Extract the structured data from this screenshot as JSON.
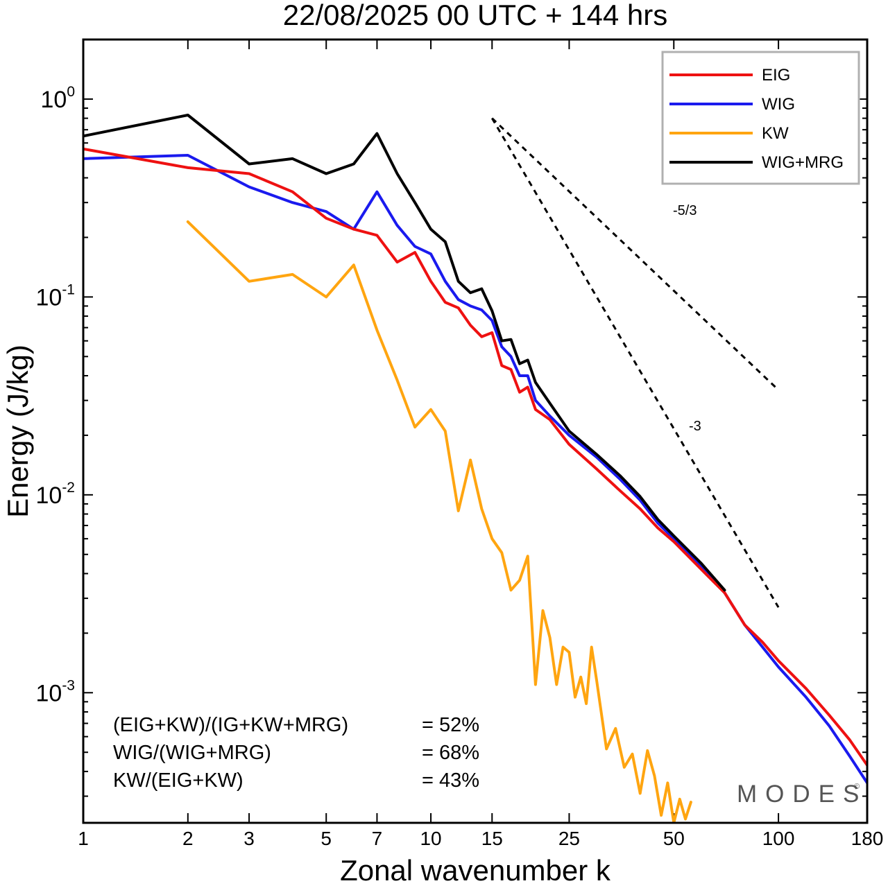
{
  "chart_data": {
    "type": "line",
    "title": "22/08/2025  00 UTC  + 144 hrs",
    "xlabel": "Zonal wavenumber k",
    "ylabel": "Energy (J/kg)",
    "xscale": "log",
    "yscale": "log",
    "xlim": [
      1,
      180
    ],
    "ylim": [
      0.00022,
      2.0
    ],
    "x_ticks": [
      1,
      2,
      3,
      5,
      7,
      10,
      15,
      25,
      50,
      100,
      180
    ],
    "x_tick_labels": [
      "1",
      "2",
      "3",
      "5",
      "7",
      "10",
      "15",
      "25",
      "50",
      "100",
      "180"
    ],
    "y_tick_labels": [
      {
        "value": 1,
        "base": "10",
        "exp": "0"
      },
      {
        "value": 0.1,
        "base": "10",
        "exp": "-1"
      },
      {
        "value": 0.01,
        "base": "10",
        "exp": "-2"
      },
      {
        "value": 0.001,
        "base": "10",
        "exp": "-3"
      }
    ],
    "legend_position": "top-right",
    "series": [
      {
        "name": "EIG",
        "color": "#ee1111",
        "x": [
          1,
          2,
          3,
          4,
          5,
          6,
          7,
          8,
          9,
          10,
          11,
          12,
          13,
          14,
          15,
          16,
          17,
          18,
          19,
          20,
          22,
          25,
          30,
          35,
          40,
          45,
          50,
          60,
          70,
          80,
          90,
          100,
          120,
          140,
          160,
          180
        ],
        "values": [
          0.56,
          0.45,
          0.42,
          0.34,
          0.25,
          0.22,
          0.205,
          0.15,
          0.168,
          0.12,
          0.094,
          0.088,
          0.072,
          0.063,
          0.066,
          0.045,
          0.043,
          0.033,
          0.035,
          0.027,
          0.024,
          0.018,
          0.0135,
          0.0105,
          0.0085,
          0.0068,
          0.0058,
          0.0042,
          0.0032,
          0.0022,
          0.0018,
          0.00145,
          0.00105,
          0.00077,
          0.00058,
          0.00043
        ]
      },
      {
        "name": "WIG",
        "color": "#1a1aee",
        "x": [
          1,
          2,
          3,
          4,
          5,
          6,
          7,
          8,
          9,
          10,
          11,
          12,
          13,
          14,
          15,
          16,
          17,
          18,
          19,
          20,
          22,
          25,
          30,
          35,
          40,
          45,
          50,
          60,
          70,
          80,
          90,
          100,
          120,
          140,
          160,
          180
        ],
        "values": [
          0.5,
          0.52,
          0.36,
          0.3,
          0.27,
          0.22,
          0.34,
          0.23,
          0.18,
          0.165,
          0.12,
          0.097,
          0.09,
          0.086,
          0.076,
          0.056,
          0.05,
          0.04,
          0.04,
          0.03,
          0.025,
          0.02,
          0.0155,
          0.012,
          0.0094,
          0.0072,
          0.006,
          0.0043,
          0.0032,
          0.0022,
          0.0017,
          0.00135,
          0.00095,
          0.00068,
          0.00048,
          0.00035
        ]
      },
      {
        "name": "KW",
        "color": "#ffa510",
        "x": [
          2,
          3,
          4,
          5,
          6,
          7,
          8,
          9,
          10,
          11,
          12,
          13,
          14,
          15,
          16,
          17,
          18,
          19,
          20,
          21,
          22,
          23,
          24,
          25,
          26,
          27,
          28,
          29,
          30,
          32,
          34,
          36,
          38,
          40,
          42,
          44,
          46,
          48,
          50,
          52,
          54,
          56
        ],
        "values": [
          0.24,
          0.12,
          0.13,
          0.1,
          0.145,
          0.068,
          0.038,
          0.022,
          0.027,
          0.021,
          0.0083,
          0.015,
          0.0085,
          0.006,
          0.0051,
          0.0033,
          0.0037,
          0.0049,
          0.0011,
          0.0026,
          0.0019,
          0.0011,
          0.0017,
          0.0016,
          0.00095,
          0.0012,
          0.00088,
          0.0017,
          0.00115,
          0.00052,
          0.00066,
          0.00042,
          0.00049,
          0.00031,
          0.00051,
          0.00038,
          0.00024,
          0.00035,
          0.00022,
          0.00029,
          0.00023,
          0.00028
        ]
      },
      {
        "name": "WIG+MRG",
        "color": "#000000",
        "x": [
          1,
          2,
          3,
          4,
          5,
          6,
          7,
          8,
          9,
          10,
          11,
          12,
          13,
          14,
          15,
          16,
          17,
          18,
          19,
          20,
          22,
          25,
          30,
          35,
          40,
          45,
          50,
          60,
          70
        ],
        "values": [
          0.65,
          0.83,
          0.47,
          0.5,
          0.42,
          0.47,
          0.67,
          0.42,
          0.3,
          0.22,
          0.19,
          0.12,
          0.105,
          0.11,
          0.085,
          0.06,
          0.061,
          0.046,
          0.048,
          0.037,
          0.029,
          0.021,
          0.016,
          0.0125,
          0.0098,
          0.0075,
          0.0062,
          0.0045,
          0.0033
        ]
      }
    ],
    "reference_slopes": [
      {
        "label": "-5/3",
        "slope": -1.6667,
        "x_start": 15,
        "x_end": 100,
        "y_start": 0.8
      },
      {
        "label": "-3",
        "slope": -3,
        "x_start": 15,
        "x_end": 100,
        "y_start": 0.8
      }
    ],
    "annotations": [
      {
        "label": "(EIG+KW)/(IG+KW+MRG)",
        "value": "= 52%"
      },
      {
        "label": "WIG/(WIG+MRG)",
        "value": "= 68%"
      },
      {
        "label": "KW/(EIG+KW)",
        "value": "= 43%"
      }
    ],
    "watermark": "MODES",
    "watermark_mark": "©"
  }
}
